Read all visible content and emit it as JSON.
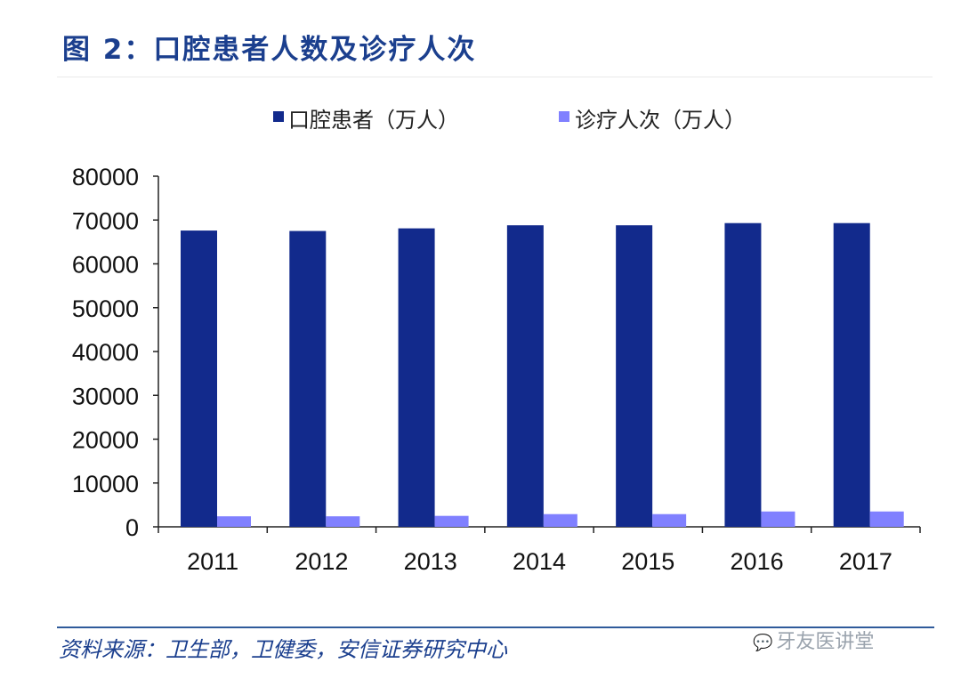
{
  "figure": {
    "title": "图 2：口腔患者人数及诊疗人次",
    "source": "资料来源：卫生部，卫健委，安信证券研究中心",
    "watermark": "牙友医讲堂"
  },
  "colors": {
    "title": "#1b3f8e",
    "patients": "#122a8c",
    "visits": "#8080ff",
    "rule": "#2f5b9b"
  },
  "chart_data": {
    "type": "bar",
    "categories": [
      "2011",
      "2012",
      "2013",
      "2014",
      "2015",
      "2016",
      "2017"
    ],
    "series": [
      {
        "name": "口腔患者（万人）",
        "values": [
          67600,
          67500,
          68100,
          68800,
          68800,
          69300,
          69300
        ]
      },
      {
        "name": "诊疗人次（万人）",
        "values": [
          2400,
          2400,
          2500,
          2900,
          2900,
          3500,
          3500
        ]
      }
    ],
    "ylim": [
      0,
      80000
    ],
    "yticks": [
      "0",
      "10000",
      "20000",
      "30000",
      "40000",
      "50000",
      "60000",
      "70000",
      "80000"
    ],
    "title": "",
    "xlabel": "",
    "ylabel": "",
    "legend_position": "top",
    "grid": false
  }
}
